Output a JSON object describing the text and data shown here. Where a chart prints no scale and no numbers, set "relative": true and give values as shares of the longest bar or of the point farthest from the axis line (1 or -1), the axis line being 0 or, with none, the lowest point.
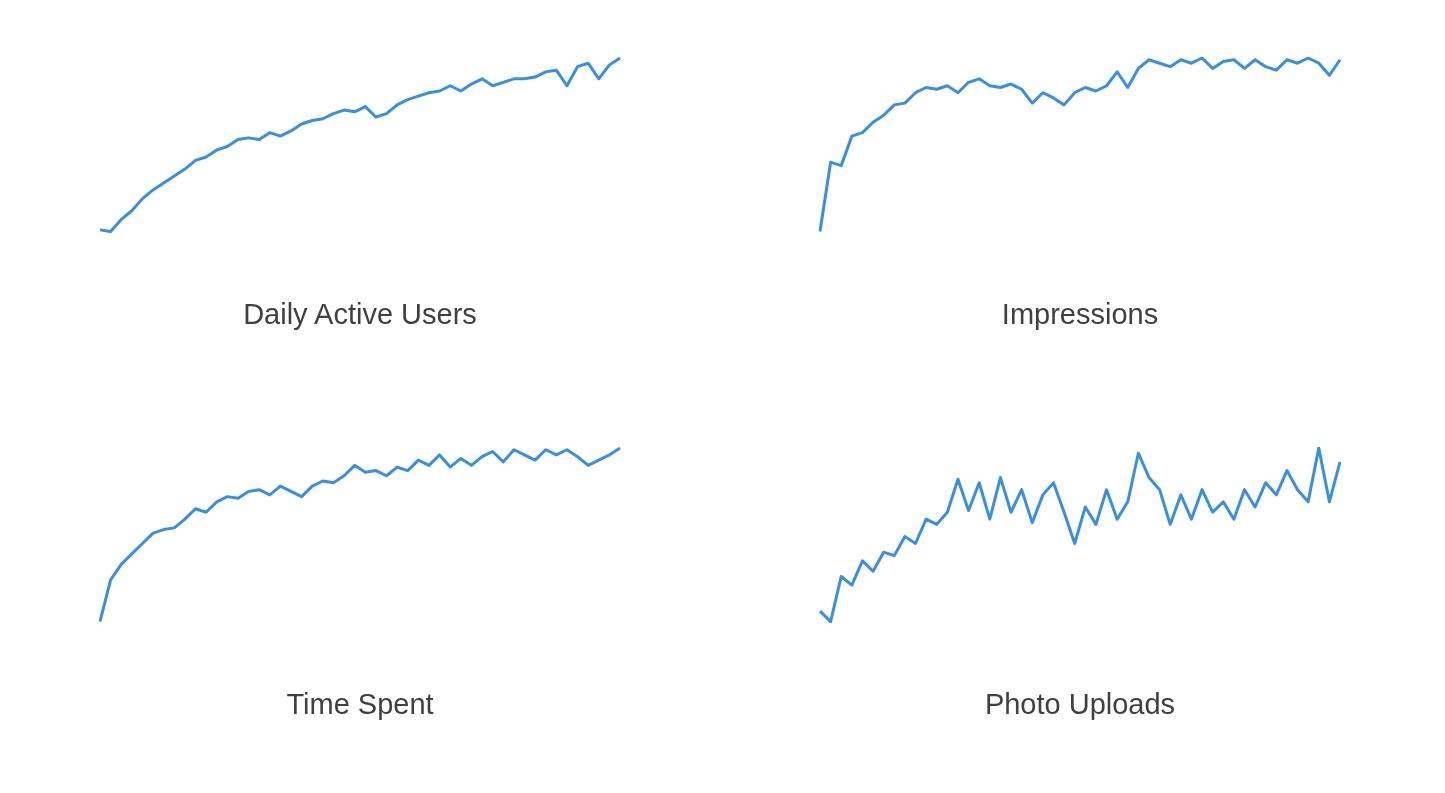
{
  "chart_data": [
    {
      "type": "line",
      "title": "Daily Active Users",
      "relative": true,
      "categories": [
        null,
        null,
        null,
        null,
        null,
        null,
        null,
        null,
        null,
        null,
        null,
        null,
        null,
        null,
        null,
        null,
        null,
        null,
        null,
        null,
        null,
        null,
        null,
        null,
        null,
        null,
        null,
        null,
        null,
        null,
        null,
        null,
        null,
        null,
        null,
        null,
        null,
        null,
        null,
        null,
        null,
        null,
        null,
        null,
        null,
        null,
        null,
        null,
        null,
        null
      ],
      "series": [
        {
          "color": "#3b8fe0",
          "values": [
            0.01,
            0,
            0.07,
            0.12,
            0.19,
            0.24,
            0.28,
            0.32,
            0.36,
            0.41,
            0.43,
            0.47,
            0.49,
            0.53,
            0.54,
            0.53,
            0.57,
            0.55,
            0.58,
            0.62,
            0.64,
            0.65,
            0.68,
            0.7,
            0.69,
            0.72,
            0.66,
            0.68,
            0.73,
            0.76,
            0.78,
            0.8,
            0.81,
            0.84,
            0.81,
            0.85,
            0.88,
            0.84,
            0.86,
            0.88,
            0.88,
            0.89,
            0.92,
            0.93,
            0.84,
            0.95,
            0.97,
            0.88,
            0.96,
            1
          ]
        }
      ]
    },
    {
      "type": "line",
      "title": "Impressions",
      "relative": true,
      "categories": [
        null,
        null,
        null,
        null,
        null,
        null,
        null,
        null,
        null,
        null,
        null,
        null,
        null,
        null,
        null,
        null,
        null,
        null,
        null,
        null,
        null,
        null,
        null,
        null,
        null,
        null,
        null,
        null,
        null,
        null,
        null,
        null,
        null,
        null,
        null,
        null,
        null,
        null,
        null,
        null,
        null,
        null,
        null,
        null,
        null,
        null,
        null,
        null,
        null,
        null
      ],
      "series": [
        {
          "color": "#3b8fe0",
          "values": [
            0,
            0.4,
            0.38,
            0.55,
            0.57,
            0.63,
            0.67,
            0.73,
            0.74,
            0.8,
            0.83,
            0.82,
            0.84,
            0.8,
            0.86,
            0.88,
            0.84,
            0.83,
            0.85,
            0.82,
            0.74,
            0.8,
            0.77,
            0.73,
            0.8,
            0.83,
            0.81,
            0.84,
            0.92,
            0.83,
            0.94,
            0.99,
            0.97,
            0.95,
            0.99,
            0.97,
            1,
            0.94,
            0.98,
            0.99,
            0.94,
            0.99,
            0.95,
            0.93,
            0.99,
            0.97,
            1,
            0.97,
            0.9,
            0.99
          ]
        }
      ]
    },
    {
      "type": "line",
      "title": "Time Spent",
      "relative": true,
      "categories": [
        null,
        null,
        null,
        null,
        null,
        null,
        null,
        null,
        null,
        null,
        null,
        null,
        null,
        null,
        null,
        null,
        null,
        null,
        null,
        null,
        null,
        null,
        null,
        null,
        null,
        null,
        null,
        null,
        null,
        null,
        null,
        null,
        null,
        null,
        null,
        null,
        null,
        null,
        null,
        null,
        null,
        null,
        null,
        null,
        null,
        null,
        null,
        null,
        null,
        null
      ],
      "series": [
        {
          "color": "#3b8fe0",
          "values": [
            0,
            0.24,
            0.33,
            0.39,
            0.45,
            0.51,
            0.53,
            0.54,
            0.59,
            0.65,
            0.63,
            0.69,
            0.72,
            0.71,
            0.75,
            0.76,
            0.73,
            0.78,
            0.75,
            0.72,
            0.78,
            0.81,
            0.8,
            0.84,
            0.9,
            0.86,
            0.87,
            0.84,
            0.89,
            0.87,
            0.93,
            0.9,
            0.96,
            0.89,
            0.94,
            0.9,
            0.95,
            0.98,
            0.92,
            0.99,
            0.96,
            0.93,
            0.99,
            0.96,
            0.99,
            0.95,
            0.9,
            0.93,
            0.96,
            1
          ]
        }
      ]
    },
    {
      "type": "line",
      "title": "Photo Uploads",
      "relative": true,
      "categories": [
        null,
        null,
        null,
        null,
        null,
        null,
        null,
        null,
        null,
        null,
        null,
        null,
        null,
        null,
        null,
        null,
        null,
        null,
        null,
        null,
        null,
        null,
        null,
        null,
        null,
        null,
        null,
        null,
        null,
        null,
        null,
        null,
        null,
        null,
        null,
        null,
        null,
        null,
        null,
        null,
        null,
        null,
        null,
        null,
        null,
        null,
        null,
        null,
        null,
        null
      ],
      "series": [
        {
          "color": "#3b8fe0",
          "values": [
            0.06,
            0,
            0.26,
            0.21,
            0.35,
            0.29,
            0.4,
            0.38,
            0.49,
            0.45,
            0.59,
            0.56,
            0.63,
            0.82,
            0.64,
            0.8,
            0.59,
            0.83,
            0.63,
            0.76,
            0.57,
            0.73,
            0.8,
            0.63,
            0.45,
            0.66,
            0.56,
            0.76,
            0.59,
            0.69,
            0.97,
            0.83,
            0.76,
            0.56,
            0.73,
            0.59,
            0.76,
            0.63,
            0.69,
            0.59,
            0.76,
            0.66,
            0.8,
            0.73,
            0.87,
            0.76,
            0.69,
            1,
            0.69,
            0.92
          ]
        }
      ]
    }
  ]
}
